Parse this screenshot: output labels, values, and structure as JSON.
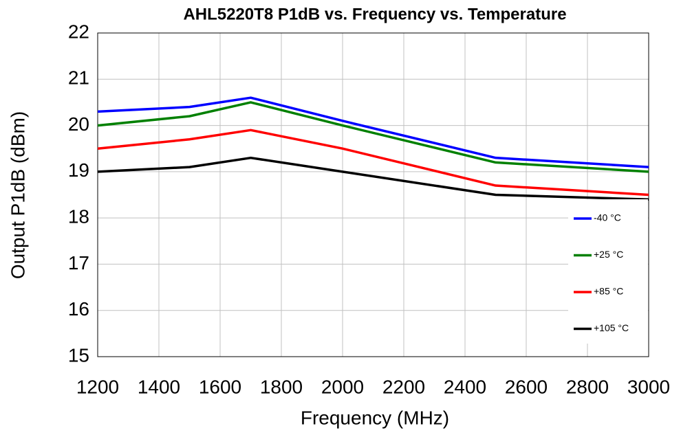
{
  "chart_data": {
    "type": "line",
    "title": "AHL5220T8 P1dB vs. Frequency vs. Temperature",
    "x_label": "Frequency (MHz)",
    "y_label": "Output P1dB (dBm)",
    "x": [
      1200,
      1500,
      1700,
      2000,
      2500,
      3000
    ],
    "series": [
      {
        "name": "-40 °C",
        "color": "#0000ff",
        "values": [
          20.3,
          20.4,
          20.6,
          20.1,
          19.3,
          19.1
        ]
      },
      {
        "name": "+25 °C",
        "color": "#008000",
        "values": [
          20.0,
          20.2,
          20.5,
          20.0,
          19.2,
          19.0
        ]
      },
      {
        "name": "+85 °C",
        "color": "#ff0000",
        "values": [
          19.5,
          19.7,
          19.9,
          19.5,
          18.7,
          18.5
        ]
      },
      {
        "name": "+105 °C",
        "color": "#000000",
        "values": [
          19.0,
          19.1,
          19.3,
          19.0,
          18.5,
          18.4
        ]
      }
    ],
    "xlim": [
      1200,
      3000
    ],
    "xticks": [
      1200,
      1400,
      1600,
      1800,
      2000,
      2200,
      2400,
      2600,
      2800,
      3000
    ],
    "ylim": [
      15,
      22
    ],
    "yticks": [
      15,
      16,
      17,
      18,
      19,
      20,
      21,
      22
    ],
    "grid": true,
    "legend": "right"
  }
}
